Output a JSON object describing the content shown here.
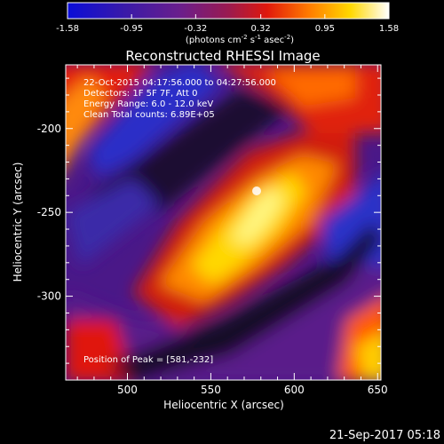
{
  "colorbar": {
    "ticks": [
      "-1.58",
      "-0.95",
      "-0.32",
      "0.32",
      "0.95",
      "1.58"
    ],
    "range": [
      -1.58,
      1.58
    ],
    "units_main": "(photons cm",
    "units_exp1": "-2",
    "units_mid": " s",
    "units_exp2": "-1",
    "units_mid2": " asec",
    "units_exp3": "-2",
    "units_end": ")",
    "colormap": "blue-purple-red-yellow-white"
  },
  "chart_data": {
    "type": "heatmap",
    "title": "Reconstructed RHESSI Image",
    "xlabel": "Heliocentric X (arcsec)",
    "ylabel": "Heliocentric Y (arcsec)",
    "xlim": [
      463,
      652
    ],
    "ylim": [
      -350,
      -162
    ],
    "xticks": [
      "500",
      "550",
      "600",
      "650"
    ],
    "yticks": [
      "-200",
      "-250",
      "-300"
    ],
    "xtick_values": [
      500,
      550,
      600,
      650
    ],
    "ytick_values": [
      -200,
      -250,
      -300
    ],
    "peak": [
      581,
      -232
    ],
    "annotations": [
      "22-Oct-2015 04:17:56.000 to 04:27:56.000",
      "Detectors: 1F 5F 7F, Att 0",
      "Energy Range: 6.0 - 12.0 keV",
      "Clean    Total counts: 6.89E+05"
    ],
    "peak_label": "Position of Peak = [581,-232]"
  },
  "footer": {
    "timestamp": "21-Sep-2017 05:18"
  }
}
